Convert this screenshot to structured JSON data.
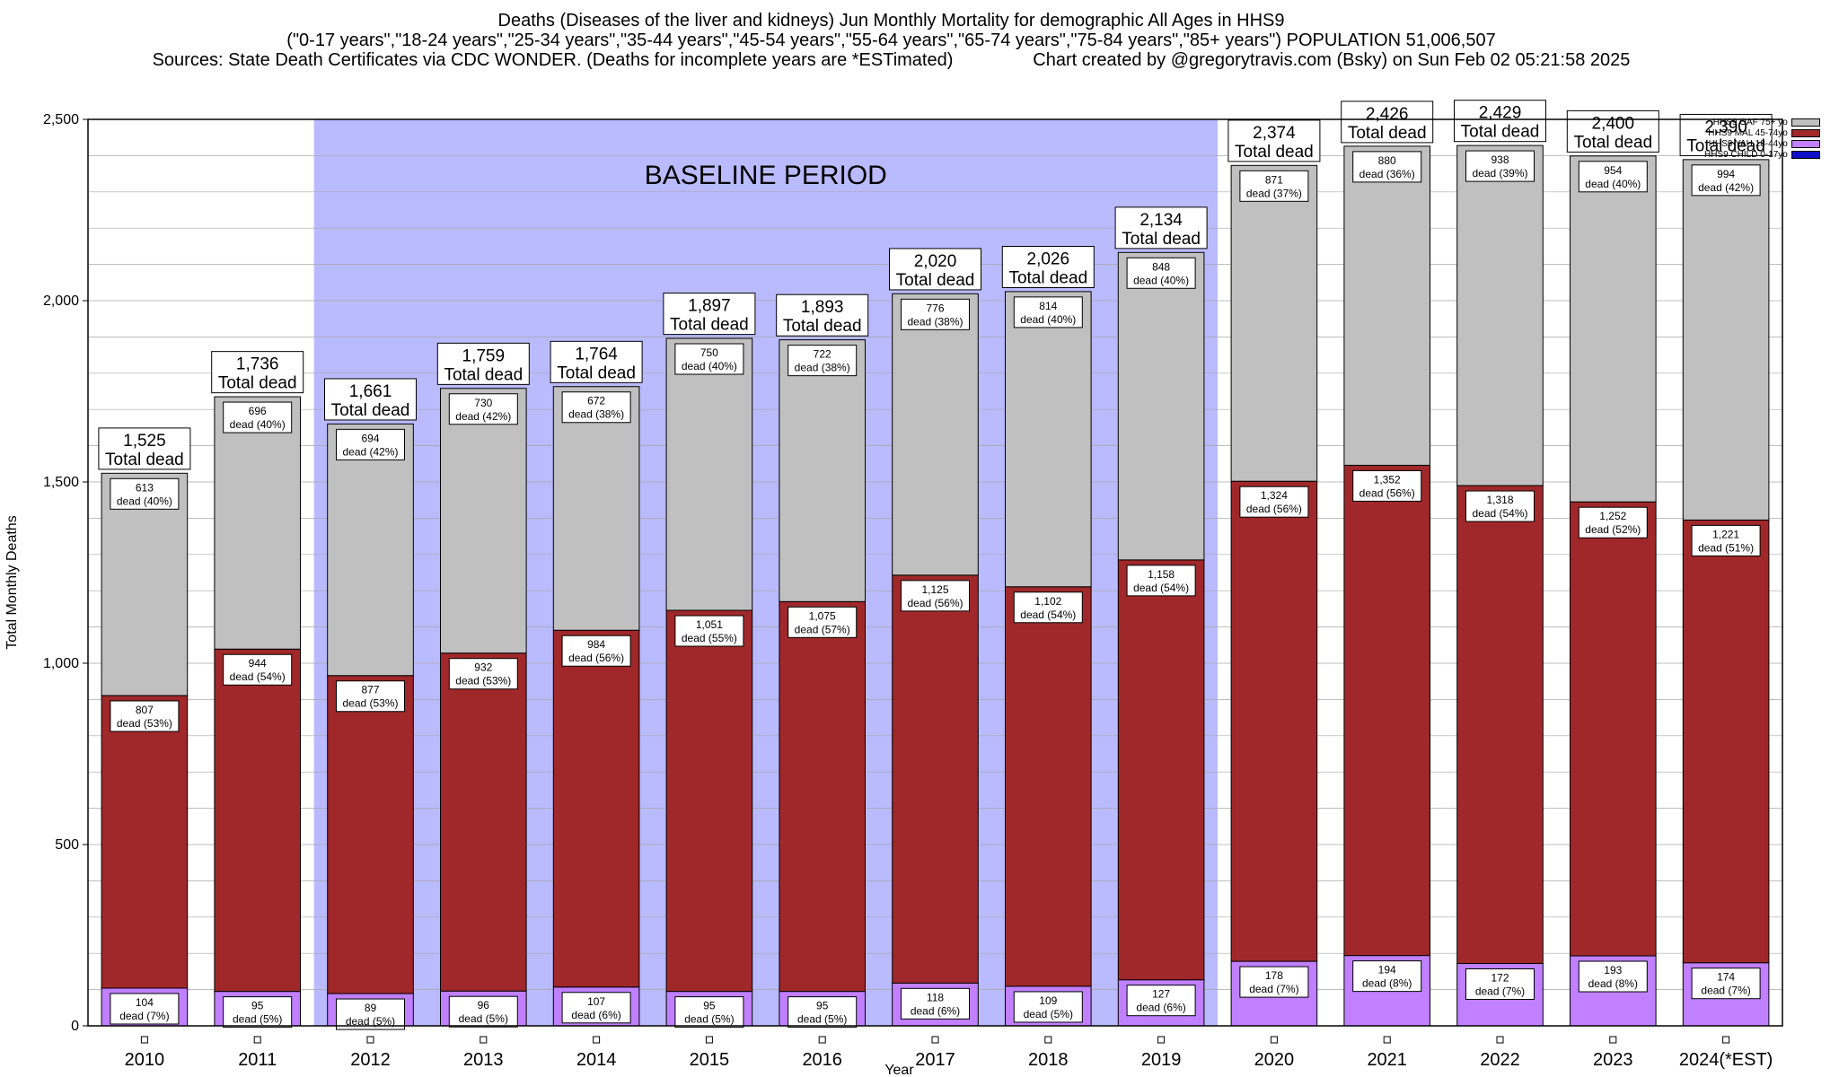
{
  "title": {
    "line1": "Deaths (Diseases of the liver and kidneys) Jun Monthly Mortality for demographic All Ages in HHS9",
    "line2": "(\"0-17 years\",\"18-24 years\",\"25-34 years\",\"35-44 years\",\"45-54 years\",\"55-64 years\",\"65-74 years\",\"75-84 years\",\"85+ years\") POPULATION 51,006,507",
    "line3_left": "Sources: State Death Certificates via CDC WONDER. (Deaths for incomplete years are *ESTimated)",
    "line3_right": "Chart created by @gregorytravis.com (Bsky) on Sun Feb 02 05:21:58 2025"
  },
  "chart_data": {
    "type": "bar",
    "stacked": true,
    "xlabel": "Year",
    "ylabel": "Total Monthly Deaths",
    "ylim": [
      0,
      2500
    ],
    "yticks": [
      0,
      500,
      1000,
      1500,
      2000,
      2500
    ],
    "ytick_labels": [
      "0",
      "500",
      "1,000",
      "1,500",
      "2,000",
      "2,500"
    ],
    "grid": true,
    "legend_position": "top-right",
    "categories": [
      "2010",
      "2011",
      "2012",
      "2013",
      "2014",
      "2015",
      "2016",
      "2017",
      "2018",
      "2019",
      "2020",
      "2021",
      "2022",
      "2023",
      "2024(*EST)"
    ],
    "series": [
      {
        "name": "HHS9 CHILD 0-17yo",
        "color": "#1010c8",
        "values": [
          1,
          1,
          1,
          1,
          1,
          1,
          1,
          1,
          1,
          1,
          1,
          1,
          1,
          1,
          1
        ],
        "labels": []
      },
      {
        "name": "HHS9 YAH 18-44yo",
        "color": "#c080ff",
        "values": [
          104,
          95,
          89,
          96,
          107,
          95,
          95,
          118,
          109,
          127,
          178,
          194,
          172,
          193,
          174
        ],
        "labels": [
          "104",
          "95",
          "89",
          "96",
          "107",
          "95",
          "95",
          "118",
          "109",
          "127",
          "178",
          "194",
          "172",
          "193",
          "174"
        ],
        "pct": [
          "dead (7%)",
          "dead (5%)",
          "dead (5%)",
          "dead (5%)",
          "dead (6%)",
          "dead (5%)",
          "dead (5%)",
          "dead (6%)",
          "dead (5%)",
          "dead (6%)",
          "dead (7%)",
          "dead (8%)",
          "dead (7%)",
          "dead (8%)",
          "dead (7%)"
        ]
      },
      {
        "name": "HHS9 MAL 45-74yo",
        "color": "#a0282a",
        "values": [
          807,
          944,
          877,
          932,
          984,
          1051,
          1075,
          1125,
          1102,
          1158,
          1324,
          1352,
          1318,
          1252,
          1221
        ],
        "labels": [
          "807",
          "944",
          "877",
          "932",
          "984",
          "1,051",
          "1,075",
          "1,125",
          "1,102",
          "1,158",
          "1,324",
          "1,352",
          "1,318",
          "1,252",
          "1,221"
        ],
        "pct": [
          "dead (53%)",
          "dead (54%)",
          "dead (53%)",
          "dead (53%)",
          "dead (56%)",
          "dead (55%)",
          "dead (57%)",
          "dead (56%)",
          "dead (54%)",
          "dead (54%)",
          "dead (56%)",
          "dead (56%)",
          "dead (54%)",
          "dead (52%)",
          "dead (51%)"
        ]
      },
      {
        "name": "HHS9 OAF 75+ yo",
        "color": "#c0c0c0",
        "values": [
          613,
          696,
          694,
          730,
          672,
          750,
          722,
          776,
          814,
          848,
          871,
          880,
          938,
          954,
          994
        ],
        "labels": [
          "613",
          "696",
          "694",
          "730",
          "672",
          "750",
          "722",
          "776",
          "814",
          "848",
          "871",
          "880",
          "938",
          "954",
          "994"
        ],
        "pct": [
          "dead (40%)",
          "dead (40%)",
          "dead (42%)",
          "dead (42%)",
          "dead (38%)",
          "dead (40%)",
          "dead (38%)",
          "dead (38%)",
          "dead (40%)",
          "dead (40%)",
          "dead (37%)",
          "dead (36%)",
          "dead (39%)",
          "dead (40%)",
          "dead (42%)"
        ]
      }
    ],
    "totals": [
      1525,
      1736,
      1661,
      1759,
      1764,
      1897,
      1893,
      2020,
      2026,
      2134,
      2374,
      2426,
      2429,
      2400,
      2390
    ],
    "total_labels": [
      "1,525",
      "1,736",
      "1,661",
      "1,759",
      "1,764",
      "1,897",
      "1,893",
      "2,020",
      "2,026",
      "2,134",
      "2,374",
      "2,426",
      "2,429",
      "2,400",
      "2,390"
    ],
    "total_caption": "Total dead",
    "baseline": {
      "label": "BASELINE PERIOD",
      "start": "2012",
      "end": "2019",
      "color": "#babaff"
    }
  },
  "legend": {
    "items": [
      {
        "label": "HHS9 OAF 75+ yo",
        "color": "#c0c0c0"
      },
      {
        "label": "HHS9 MAL 45-74yo",
        "color": "#a0282a"
      },
      {
        "label": "HHS9 YAH 18-44yo",
        "color": "#c080ff"
      },
      {
        "label": "HHS9 CHILD 0-17yo",
        "color": "#1010c8"
      }
    ]
  }
}
